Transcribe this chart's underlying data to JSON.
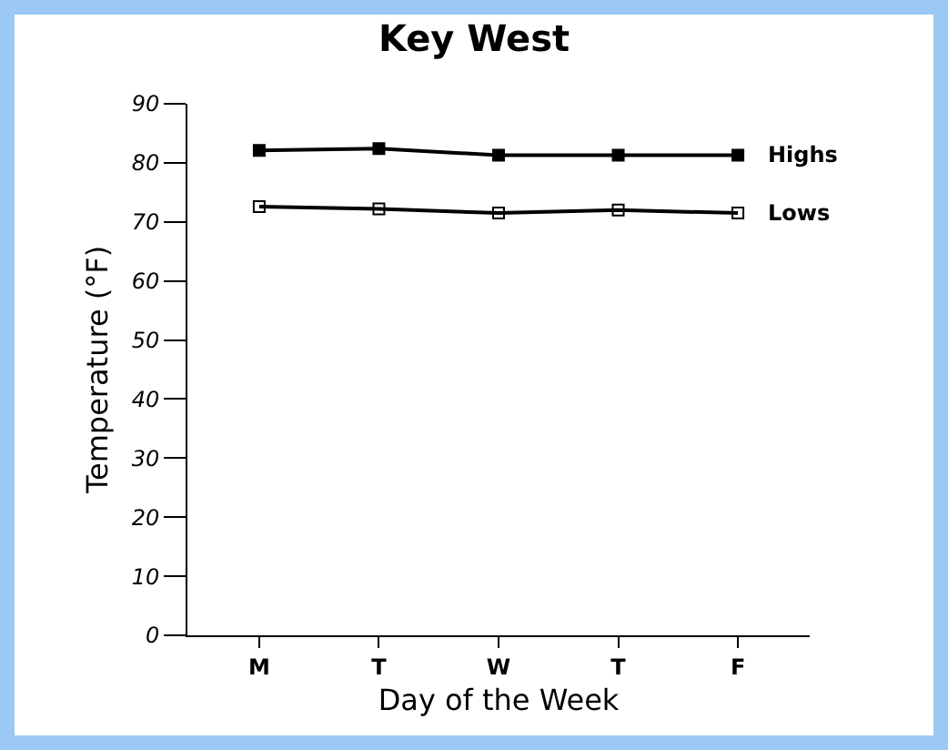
{
  "chart_data": {
    "type": "line",
    "title": "Key West",
    "xlabel": "Day of the Week",
    "ylabel": "Temperature (°F)",
    "categories": [
      "M",
      "T",
      "W",
      "T",
      "F"
    ],
    "series": [
      {
        "name": "Highs",
        "color": "#000000",
        "values": [
          82.1,
          82.4,
          81.3,
          81.3,
          81.3
        ]
      },
      {
        "name": "Lows",
        "color": "#000000",
        "values": [
          72.6,
          72.2,
          71.5,
          72.0,
          71.5
        ]
      }
    ],
    "ylim": [
      0,
      90
    ],
    "yticks": [
      0,
      10,
      20,
      30,
      40,
      50,
      60,
      70,
      80,
      90
    ],
    "grid": false,
    "legend": false,
    "marker": "square",
    "line_style": "solid"
  }
}
